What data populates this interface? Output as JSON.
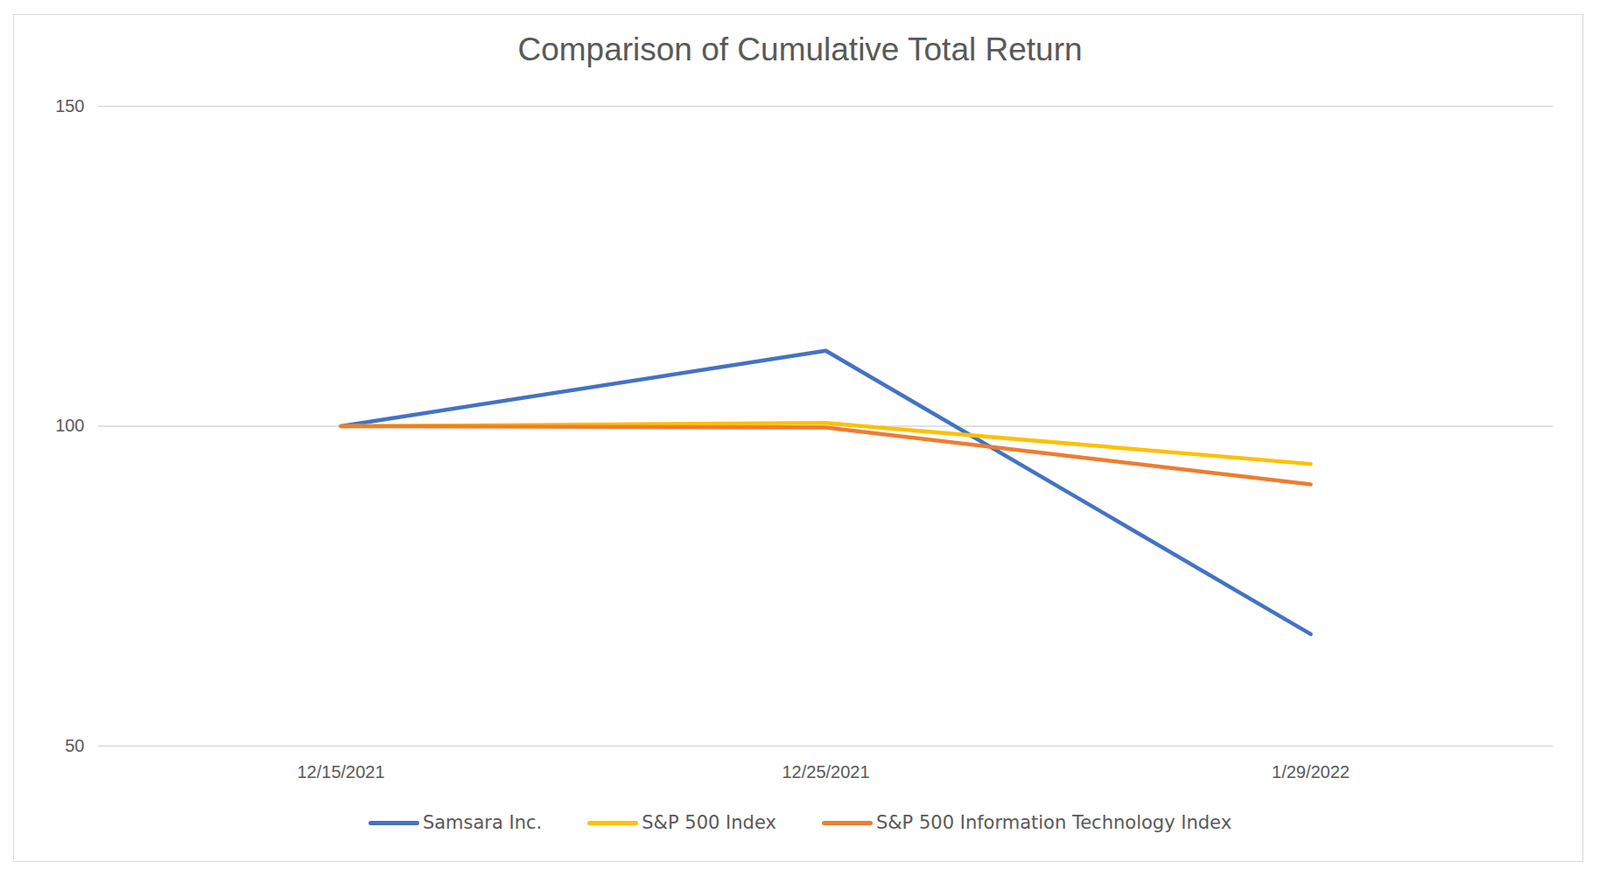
{
  "chart_data": {
    "type": "line",
    "title": "Comparison of Cumulative Total Return",
    "categories": [
      "12/15/2021",
      "12/25/2021",
      "1/29/2022"
    ],
    "series": [
      {
        "name": "Samsara Inc.",
        "color": "#4472c4",
        "values": [
          100,
          111.8,
          67.5
        ]
      },
      {
        "name": "S&P 500 Index",
        "color": "#ffc000",
        "values": [
          100,
          100.5,
          94.1
        ]
      },
      {
        "name": "S&P 500 Information Technology Index",
        "color": "#ed7d31",
        "values": [
          100,
          99.8,
          90.9
        ]
      }
    ],
    "ylim": [
      50,
      150
    ],
    "yticks": [
      50,
      100,
      150
    ],
    "grid": true,
    "legend": "bottom"
  }
}
